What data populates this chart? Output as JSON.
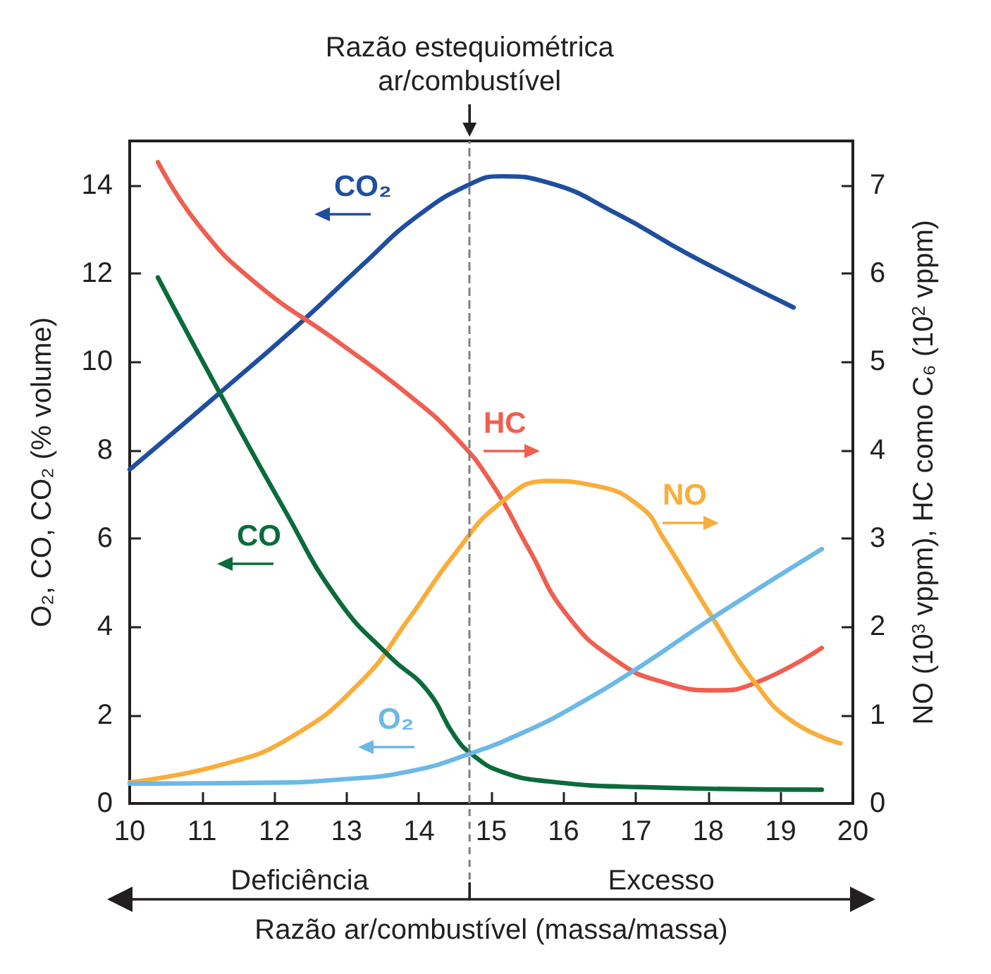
{
  "chart_data": {
    "type": "line",
    "xlabel": "Razão ar/combustível (massa/massa)",
    "ylabel": "O₂, CO, CO₂ (% volume)",
    "y2label": "NO (10$^{3}$ vppm), HC como C₆ (10$^{2}$ vppm)",
    "xlim": [
      10,
      20
    ],
    "xticks": [
      10,
      11,
      12,
      13,
      14,
      15,
      16,
      17,
      18,
      19,
      20
    ],
    "ylim": [
      0,
      15
    ],
    "yticks": [
      0,
      2,
      4,
      6,
      8,
      10,
      12,
      14
    ],
    "y2lim": [
      0,
      7.5
    ],
    "y2ticks": [
      0,
      1,
      2,
      3,
      4,
      5,
      6,
      7
    ],
    "ref_lines": [
      {
        "axis": "x",
        "value": 14.7,
        "label": "Razão estequiométrica\nar/combustível",
        "color": "#808080",
        "line_style": "dashed"
      }
    ],
    "annotations": [
      "Deficiência",
      "Excesso"
    ],
    "series": [
      {
        "name": "CO₂",
        "color": "#1f4e9e",
        "axis": "y",
        "x": [
          10,
          11.22,
          12.38,
          13.21,
          13.98,
          14.73,
          15.14,
          15.78,
          16.74,
          17.71,
          19.18
        ],
        "values": [
          7.56,
          9.26,
          10.91,
          12.18,
          13.3,
          14.04,
          14.2,
          14.06,
          13.35,
          12.45,
          11.23
        ]
      },
      {
        "name": "HC",
        "color": "#ef5f50",
        "axis": "y2",
        "x": [
          10.39,
          10.96,
          11.73,
          12.89,
          13.85,
          14.5,
          15.01,
          15.52,
          16.04,
          16.74,
          17.39,
          18.09,
          18.67,
          19.57
        ],
        "values": [
          7.26,
          6.54,
          5.9,
          5.22,
          4.63,
          4.15,
          3.62,
          2.88,
          2.14,
          1.61,
          1.37,
          1.28,
          1.37,
          1.76
        ]
      },
      {
        "name": "NO",
        "color": "#f9ad3a",
        "axis": "y2",
        "x": [
          10,
          11.28,
          12.25,
          13.21,
          13.85,
          14.5,
          15.14,
          15.78,
          16.42,
          17.06,
          17.39,
          18.03,
          18.67,
          19.18,
          19.83
        ],
        "values": [
          0.24,
          0.44,
          0.76,
          1.39,
          2.08,
          2.83,
          3.41,
          3.65,
          3.6,
          3.36,
          2.99,
          2.14,
          1.34,
          0.92,
          0.68
        ]
      },
      {
        "name": "CO",
        "color": "#0b6b3a",
        "axis": "y",
        "x": [
          10.39,
          11.22,
          12.12,
          12.89,
          13.6,
          14.11,
          14.5,
          14.75,
          15.14,
          15.78,
          17.06,
          19.57
        ],
        "values": [
          11.91,
          9.37,
          6.71,
          4.59,
          3.32,
          2.57,
          1.51,
          1.09,
          0.72,
          0.5,
          0.37,
          0.31
        ]
      },
      {
        "name": "O₂",
        "color": "#6cb8e6",
        "axis": "y",
        "x": [
          10,
          11.93,
          12.89,
          13.85,
          14.73,
          15.46,
          16.1,
          17.06,
          18.03,
          19.57
        ],
        "values": [
          0.45,
          0.47,
          0.54,
          0.72,
          1.14,
          1.62,
          2.15,
          3.1,
          4.17,
          5.76
        ]
      }
    ],
    "marker": "none",
    "line_style": "solid",
    "grid": false,
    "legend": false
  }
}
